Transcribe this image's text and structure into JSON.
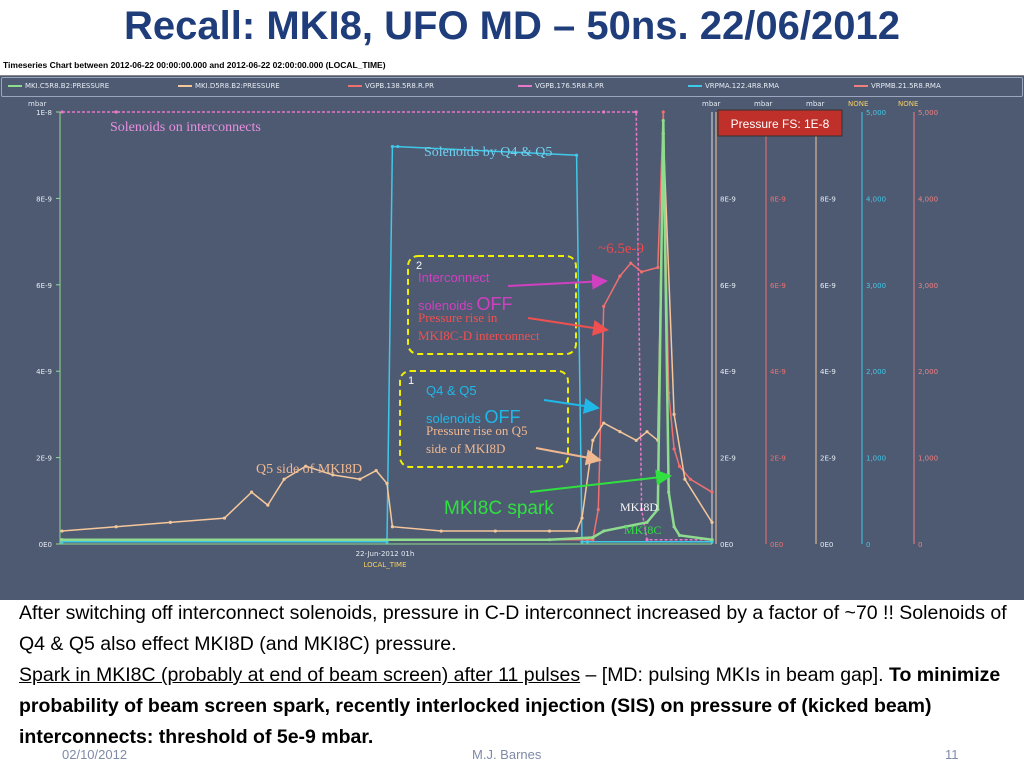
{
  "slide": {
    "title": "Recall: MKI8, UFO MD – 50ns. 22/06/2012",
    "footer_date": "02/10/2012",
    "footer_author": "M.J. Barnes",
    "footer_page": "11"
  },
  "timeseries": {
    "header": "Timeseries Chart between 2012-06-22 00:00:00.000 and 2012-06-22 02:00:00.000 (LOCAL_TIME)",
    "legend": [
      {
        "name": "MKI.C5R8.B2:PRESSURE",
        "color": "#8fdc8f"
      },
      {
        "name": "MKI.D5R8.B2:PRESSURE",
        "color": "#f5c79a"
      },
      {
        "name": "VGPB.138.5R8.R.PR",
        "color": "#f07070"
      },
      {
        "name": "VGPB.176.5R8.R.PR",
        "color": "#e878c8"
      },
      {
        "name": "VRPMA.122.4R8.RMA",
        "color": "#3fc8e8"
      },
      {
        "name": "VRPMB.21.5R8.RMA",
        "color": "#f08080"
      }
    ]
  },
  "chart_data": {
    "type": "line",
    "x_label_tick": "22-Jun-2012 01h",
    "x_label": "LOCAL_TIME",
    "y_unit_left": "mbar",
    "y_ticks_left": [
      "1E-8",
      "8E-9",
      "6E-9",
      "4E-9",
      "2E-9",
      "0E0"
    ],
    "y_ticks_right_mbar": [
      "8E-9",
      "6E-9",
      "4E-9",
      "2E-9",
      "0E0"
    ],
    "right_axis_units": [
      "mbar",
      "mbar",
      "mbar",
      "NONE",
      "NONE"
    ],
    "y_ticks_right_none": [
      "5,000",
      "4,000",
      "3,000",
      "2,000",
      "1,000",
      "0"
    ],
    "ylim": [
      0,
      1e-08
    ],
    "xlim": [
      0,
      120
    ],
    "series": [
      {
        "name": "VGPB.176.5R8.R.PR",
        "color": "#e878c8",
        "x": [
          0,
          10,
          100,
          106,
          107,
          108,
          120
        ],
        "values": [
          1e-08,
          1e-08,
          1e-08,
          1e-08,
          8e-10,
          1e-10,
          1e-10
        ]
      },
      {
        "name": "VRPMA.122.4R8.RMA",
        "color": "#3fc8e8",
        "x": [
          0,
          60,
          61,
          62,
          95,
          96,
          97,
          120
        ],
        "values": [
          5e-11,
          5e-11,
          9.2e-09,
          9.2e-09,
          9e-09,
          5e-11,
          5e-11,
          5e-11
        ]
      },
      {
        "name": "VGPB.138.5R8.R.PR",
        "color": "#f07070",
        "x": [
          0,
          98,
          99,
          100,
          103,
          105,
          107,
          110,
          111,
          112,
          113,
          114,
          116,
          120
        ],
        "values": [
          1e-10,
          1e-10,
          8e-10,
          5.5e-09,
          6.2e-09,
          6.5e-09,
          6.3e-09,
          6.4e-09,
          1e-08,
          3.5e-09,
          2.2e-09,
          1.8e-09,
          1.5e-09,
          1.2e-09
        ]
      },
      {
        "name": "MKI.D5R8.B2:PRESSURE",
        "color": "#f5c79a",
        "x": [
          0,
          10,
          20,
          30,
          35,
          38,
          41,
          45,
          50,
          55,
          58,
          60,
          61,
          70,
          80,
          90,
          95,
          96,
          98,
          100,
          103,
          106,
          108,
          110,
          111,
          113,
          115,
          120
        ],
        "values": [
          3e-10,
          4e-10,
          5e-10,
          6e-10,
          1.2e-09,
          9e-10,
          1.5e-09,
          1.8e-09,
          1.6e-09,
          1.5e-09,
          1.7e-09,
          1.4e-09,
          4e-10,
          3e-10,
          3e-10,
          3e-10,
          3e-10,
          6e-10,
          2.4e-09,
          2.8e-09,
          2.6e-09,
          2.4e-09,
          2.6e-09,
          2.4e-09,
          9.5e-09,
          3e-09,
          1.5e-09,
          5e-10
        ]
      },
      {
        "name": "MKI.C5R8.B2:PRESSURE",
        "color": "#8fdc8f",
        "x": [
          0,
          90,
          98,
          100,
          104,
          108,
          110,
          111,
          112,
          113,
          114,
          120
        ],
        "values": [
          1e-10,
          1e-10,
          1.5e-10,
          3e-10,
          4e-10,
          5e-10,
          8e-10,
          9.8e-09,
          1.2e-09,
          4e-10,
          2e-10,
          1e-10
        ]
      }
    ],
    "annotations": {
      "pressure_fs": "Pressure FS: 1E-8",
      "solenoids_interconnects": "Solenoids on interconnects",
      "solenoids_q4q5": "Solenoids by Q4 & Q5",
      "peak_label": "~6.5e-9",
      "box2_num": "2",
      "box2_line1": "Interconnect",
      "box2_line2a": "solenoids ",
      "box2_off": "OFF",
      "box2_rise1": "Pressure rise in",
      "box2_rise2": "MKI8C-D interconnect",
      "box1_num": "1",
      "box1_line1": "Q4  & Q5",
      "box1_line2a": "solenoids ",
      "box1_off": "OFF",
      "box1_rise1": "Pressure rise on Q5",
      "box1_rise2": "side of MKI8D",
      "q5_side": "Q5 side of MKI8D",
      "spark": "MKI8C spark",
      "mki8d": "MKI8D",
      "mki8c": "MKI8C"
    }
  },
  "text": {
    "p1": "After switching off interconnect solenoids, pressure in C-D interconnect increased by a factor of ~70 !! Solenoids of Q4 & Q5 also effect MKI8D (and MKI8C) pressure.",
    "p2_underlined": "Spark in MKI8C (probably at end of beam screen) after 11 pulses",
    "p2_rest": " – [MD: pulsing MKIs in beam gap]. ",
    "p2_bold": "To minimize probability of beam screen spark, recently interlocked injection (SIS) on pressure of (kicked beam) interconnects: threshold of 5e-9 mbar."
  }
}
